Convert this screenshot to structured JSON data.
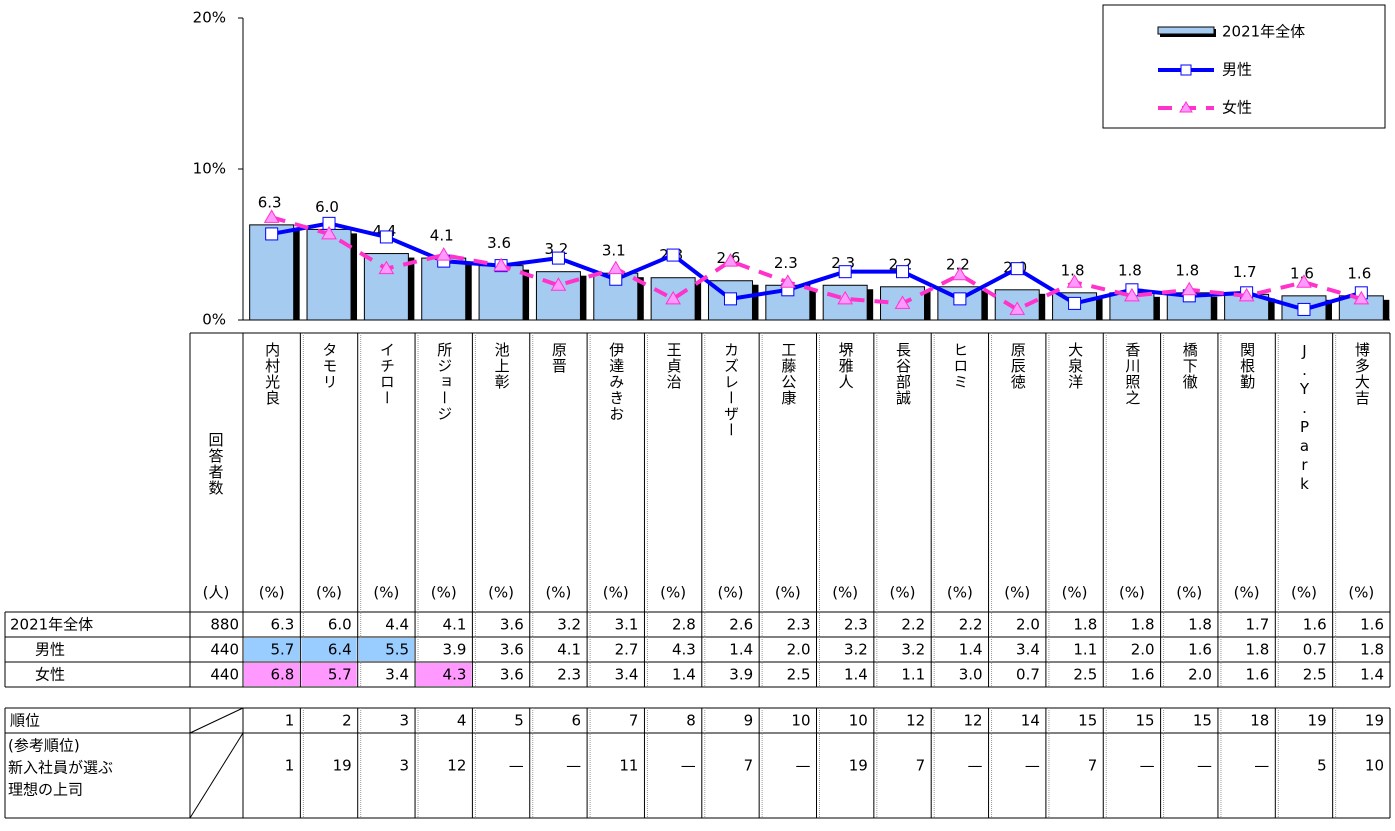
{
  "chart_data": {
    "type": "bar",
    "categories": [
      "内村光良",
      "タモリ",
      "イチロー",
      "所ジョージ",
      "池上彰",
      "原晋",
      "伊達みきお",
      "王貞治",
      "カズレーザー",
      "工藤公康",
      "堺雅人",
      "長谷部誠",
      "ヒロミ",
      "原辰徳",
      "大泉洋",
      "香川照之",
      "橋下徹",
      "関根勤",
      "J.Y.Park",
      "博多大吉"
    ],
    "series": [
      {
        "name": "2021年全体",
        "type": "bar",
        "color": "#a6cbf0",
        "respondents": 880,
        "values": [
          6.3,
          6.0,
          4.4,
          4.1,
          3.6,
          3.2,
          3.1,
          2.8,
          2.6,
          2.3,
          2.3,
          2.2,
          2.2,
          2.0,
          1.8,
          1.8,
          1.8,
          1.7,
          1.6,
          1.6
        ],
        "value_labels": [
          "6.3",
          "6.0",
          "4.4",
          "4.1",
          "3.6",
          "3.2",
          "3.1",
          "2.8",
          "2.6",
          "2.3",
          "2.3",
          "2.2",
          "2.2",
          "2.0",
          "1.8",
          "1.8",
          "1.8",
          "1.7",
          "1.6",
          "1.6"
        ]
      },
      {
        "name": "男性",
        "type": "line",
        "color": "#0000ff",
        "respondents": 440,
        "highlight": [
          0,
          1,
          2
        ],
        "highlight_color": "#99ccff",
        "values": [
          5.7,
          6.4,
          5.5,
          3.9,
          3.6,
          4.1,
          2.7,
          4.3,
          1.4,
          2.0,
          3.2,
          3.2,
          1.4,
          3.4,
          1.1,
          2.0,
          1.6,
          1.8,
          0.7,
          1.8
        ],
        "value_labels": [
          "5.7",
          "6.4",
          "5.5",
          "3.9",
          "3.6",
          "4.1",
          "2.7",
          "4.3",
          "1.4",
          "2.0",
          "3.2",
          "3.2",
          "1.4",
          "3.4",
          "1.1",
          "2.0",
          "1.6",
          "1.8",
          "0.7",
          "1.8"
        ]
      },
      {
        "name": "女性",
        "type": "line",
        "dashed": true,
        "color": "#ff33cc",
        "respondents": 440,
        "highlight": [
          0,
          1,
          3
        ],
        "highlight_color": "#ff99ff",
        "values": [
          6.8,
          5.7,
          3.4,
          4.3,
          3.6,
          2.3,
          3.4,
          1.4,
          3.9,
          2.5,
          1.4,
          1.1,
          3.0,
          0.7,
          2.5,
          1.6,
          2.0,
          1.6,
          2.5,
          1.4
        ],
        "value_labels": [
          "6.8",
          "5.7",
          "3.4",
          "4.3",
          "3.6",
          "2.3",
          "3.4",
          "1.4",
          "3.9",
          "2.5",
          "1.4",
          "1.1",
          "3.0",
          "0.7",
          "2.5",
          "1.6",
          "2.0",
          "1.6",
          "2.5",
          "1.4"
        ]
      }
    ],
    "ylim": [
      0,
      20
    ],
    "yticks": [
      {
        "value": 0,
        "label": "0%"
      },
      {
        "value": 10,
        "label": "10%"
      },
      {
        "value": 20,
        "label": "20%"
      }
    ],
    "legend": "top-right"
  },
  "table": {
    "respondents_header": "回答者数",
    "respondents_unit": "(人)",
    "percent_unit": "(%)",
    "rank_label": "順位",
    "ranks": [
      1,
      2,
      3,
      4,
      5,
      6,
      7,
      8,
      9,
      10,
      10,
      12,
      12,
      14,
      15,
      15,
      15,
      18,
      19,
      19
    ],
    "ref_label": [
      "(参考順位)",
      "新入社員が選ぶ",
      "理想の上司"
    ],
    "ref_ranks": [
      "1",
      "19",
      "3",
      "12",
      "—",
      "—",
      "11",
      "—",
      "7",
      "—",
      "19",
      "7",
      "—",
      "—",
      "7",
      "—",
      "—",
      "—",
      "5",
      "10"
    ]
  }
}
